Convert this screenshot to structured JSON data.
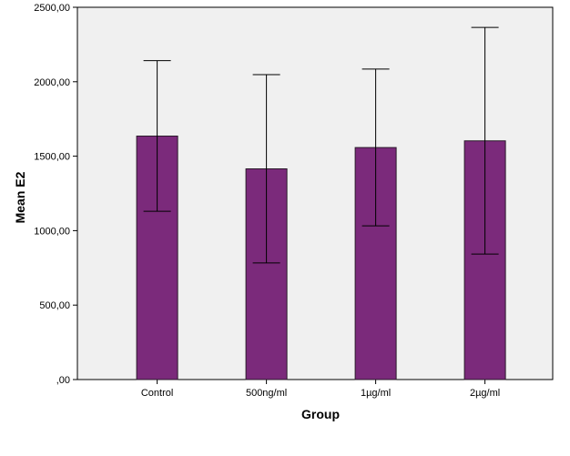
{
  "chart_data": {
    "type": "bar",
    "title": "",
    "xlabel": "Group",
    "ylabel": "Mean E2",
    "categories": [
      "Control",
      "500ng/ml",
      "1µg/ml",
      "2µg/ml"
    ],
    "values": [
      1635,
      1415,
      1558,
      1603
    ],
    "error_bars": {
      "lower": [
        1130,
        783,
        1032,
        843
      ],
      "upper": [
        2142,
        2048,
        2085,
        2365
      ]
    },
    "ylim": [
      0,
      2500
    ],
    "yticks": [
      0,
      500,
      1000,
      1500,
      2000,
      2500
    ],
    "ytick_labels": [
      ",00",
      "500,00",
      "1000,00",
      "1500,00",
      "2000,00",
      "2500,00"
    ],
    "grid": false,
    "colors": {
      "bar_fill": "#7b2a7b",
      "bar_stroke": "#2a1a2a",
      "plot_background": "#f0f0f0",
      "error_bar": "#000000"
    }
  }
}
